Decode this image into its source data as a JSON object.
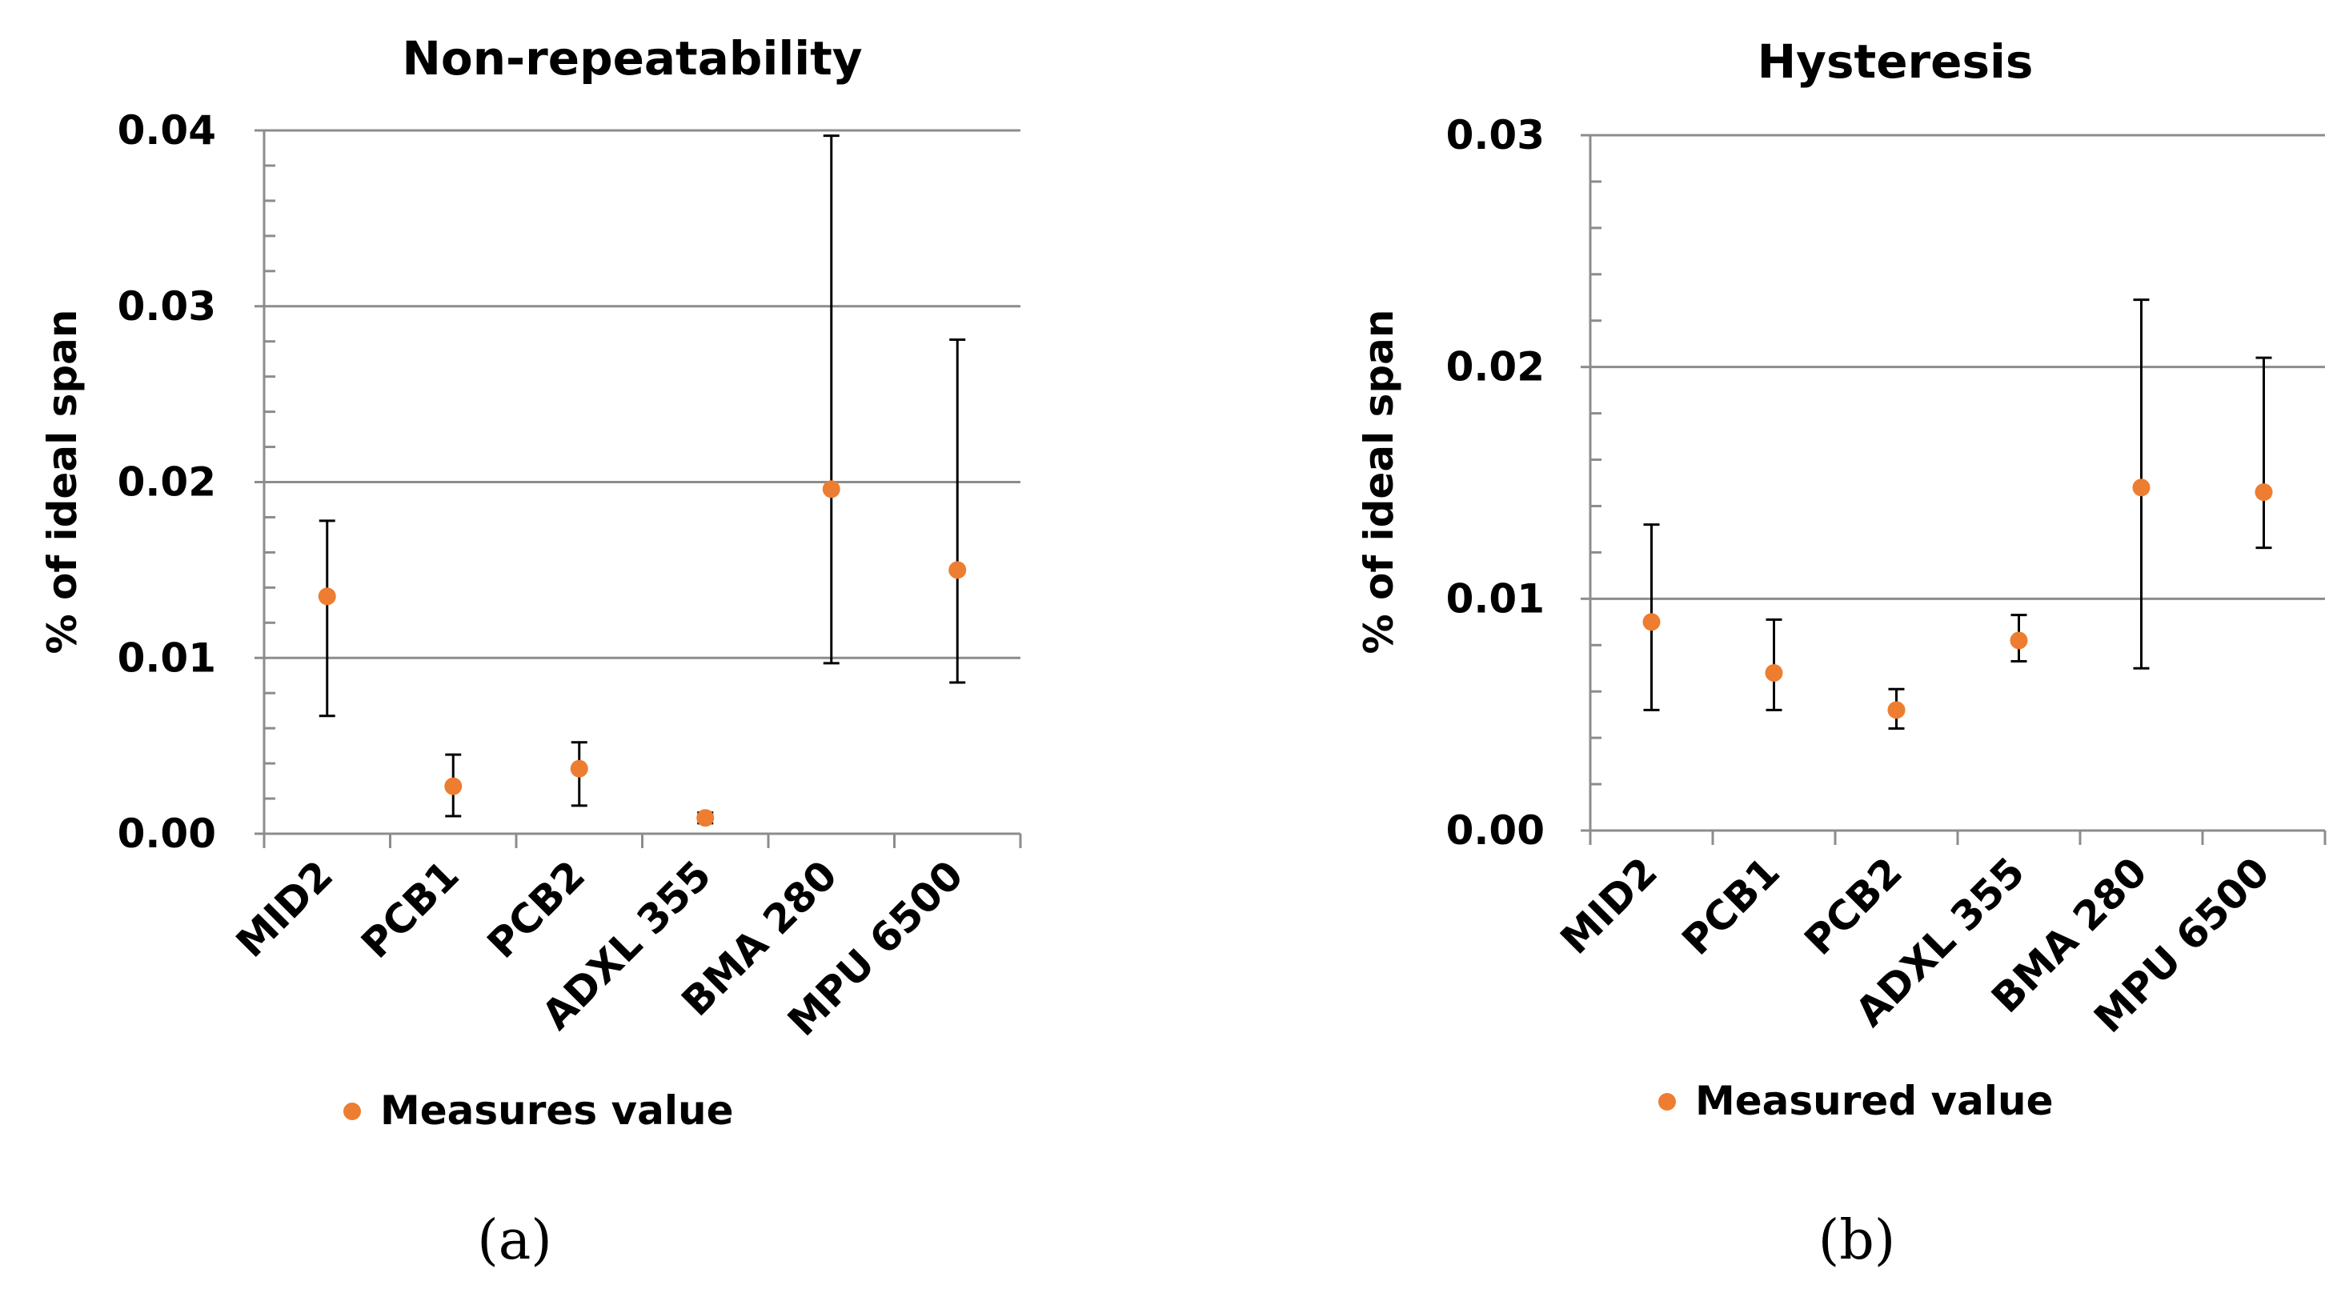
{
  "chart_data": [
    {
      "type": "scatter",
      "panel_label": "(a)",
      "title": "Non-repeatability",
      "ylabel": "% of ideal span",
      "xlabel": "",
      "categories": [
        "MID2",
        "PCB1",
        "PCB2",
        "ADXL 355",
        "BMA 280",
        "MPU 6500"
      ],
      "ylim": [
        0,
        0.04
      ],
      "yticks": [
        0.0,
        0.01,
        0.02,
        0.03,
        0.04
      ],
      "ytick_labels": [
        "0.00",
        "0.01",
        "0.02",
        "0.03",
        "0.04"
      ],
      "grid": true,
      "legend_position": "bottom",
      "series": [
        {
          "name": "Measures value",
          "color": "#ED7D31",
          "values": [
            0.0135,
            0.0027,
            0.0037,
            0.0009,
            0.0196,
            0.015
          ],
          "err_low": [
            0.0067,
            0.001,
            0.0016,
            0.0006,
            0.0097,
            0.0086
          ],
          "err_high": [
            0.0178,
            0.0045,
            0.0052,
            0.0012,
            0.0397,
            0.0281
          ]
        }
      ]
    },
    {
      "type": "scatter",
      "panel_label": "(b)",
      "title": "Hysteresis",
      "ylabel": "% of ideal span",
      "xlabel": "",
      "categories": [
        "MID2",
        "PCB1",
        "PCB2",
        "ADXL 355",
        "BMA 280",
        "MPU 6500"
      ],
      "ylim": [
        0,
        0.03
      ],
      "yticks": [
        0.0,
        0.01,
        0.02,
        0.03
      ],
      "ytick_labels": [
        "0.00",
        "0.01",
        "0.02",
        "0.03"
      ],
      "grid": true,
      "legend_position": "bottom",
      "series": [
        {
          "name": "Measured value",
          "color": "#ED7D31",
          "values": [
            0.009,
            0.0068,
            0.0052,
            0.0082,
            0.0148,
            0.0146
          ],
          "err_low": [
            0.0052,
            0.0052,
            0.0044,
            0.0073,
            0.007,
            0.0122
          ],
          "err_high": [
            0.0132,
            0.0091,
            0.0061,
            0.0093,
            0.0229,
            0.0204
          ]
        }
      ]
    }
  ]
}
